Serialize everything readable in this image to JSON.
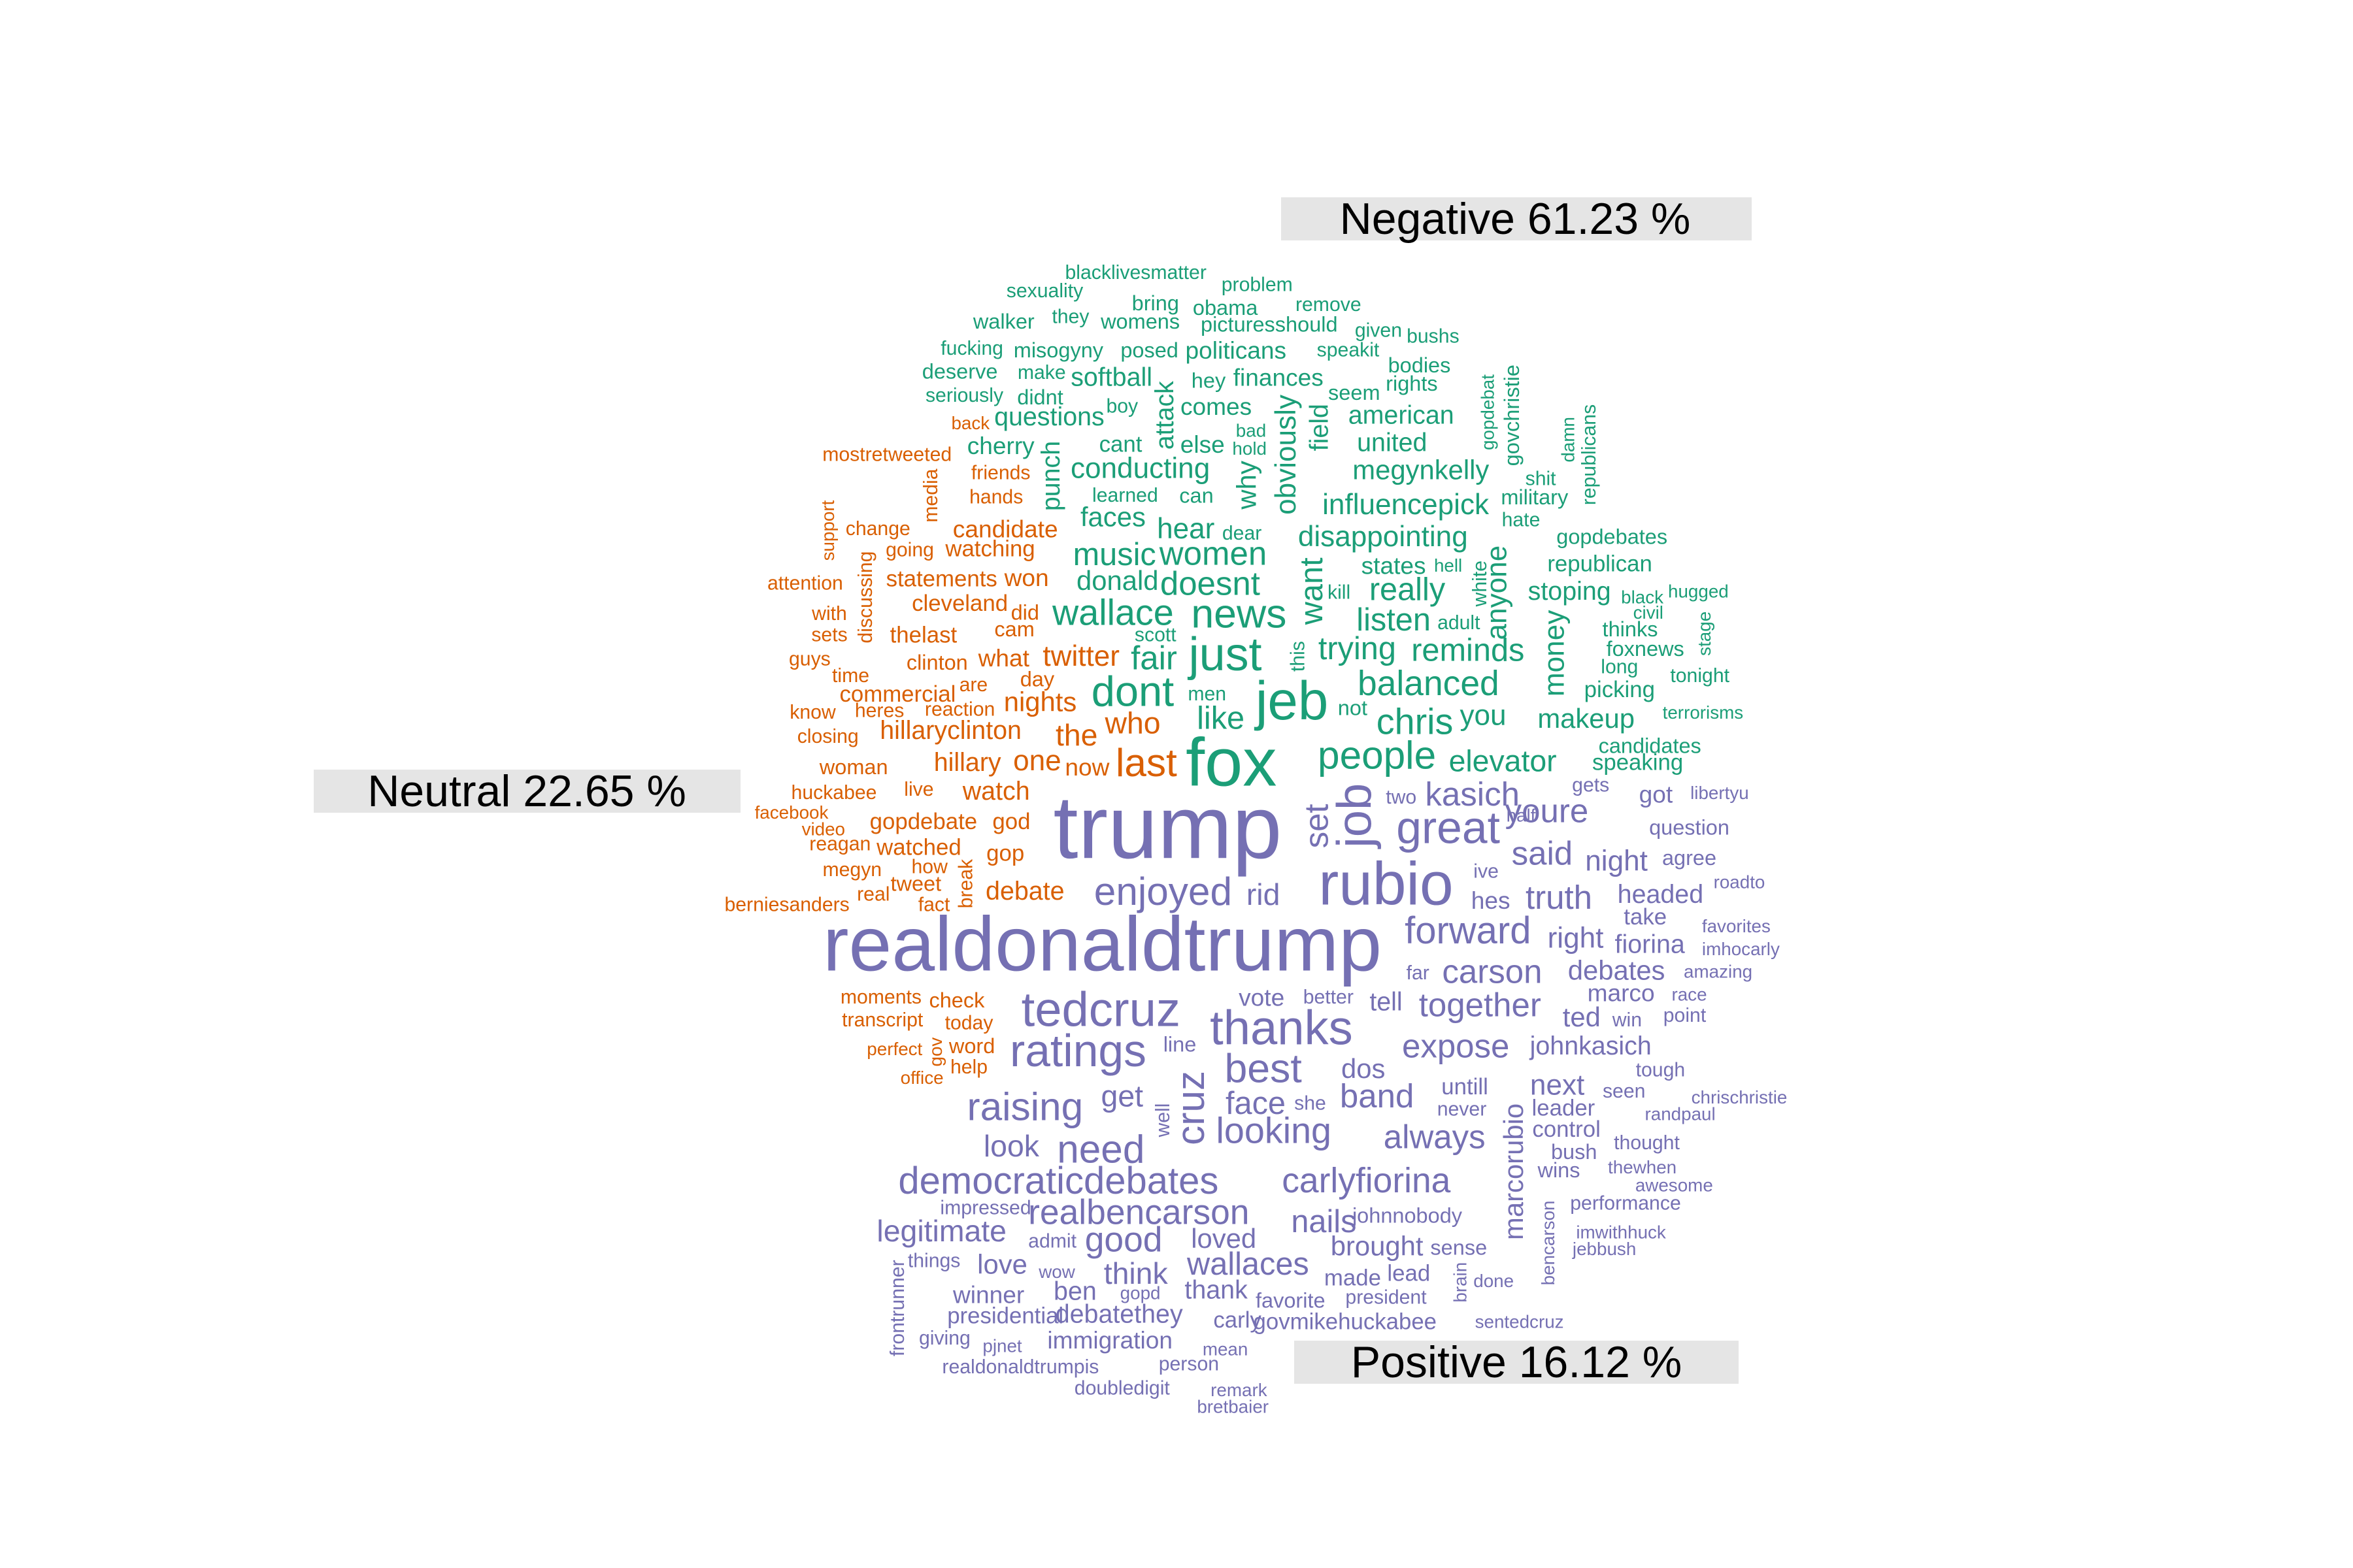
{
  "colors": {
    "negative": "#1b9e77",
    "neutral": "#d95f02",
    "positive": "#7570b3",
    "label_bg": "#e5e5e5"
  },
  "labels": {
    "negative": "Negative 61.23 %",
    "neutral": "Neutral 22.65 %",
    "positive": "Positive 16.12 %"
  },
  "words": {
    "negative": [
      "blacklivesmatter",
      "sexuality",
      "problem",
      "bring",
      "obama",
      "remove",
      "walker",
      "they",
      "womens",
      "picturesshould",
      "given",
      "bushs",
      "fucking",
      "misogyny",
      "posed",
      "politicans",
      "speakit",
      "bodies",
      "deserve",
      "make",
      "softball",
      "hey",
      "finances",
      "rights",
      "seriously",
      "didnt",
      "boy",
      "seem",
      "gopdebat",
      "questions",
      "comes",
      "american",
      "govchristie",
      "republicans",
      "cherry",
      "cant",
      "else",
      "bad",
      "hold",
      "united",
      "damn",
      "attack",
      "field",
      "punch",
      "conducting",
      "obviously",
      "megynkelly",
      "shit",
      "learned",
      "can",
      "why",
      "influencepick",
      "military",
      "faces",
      "hear",
      "dear",
      "hate",
      "music",
      "women",
      "disappointing",
      "gopdebates",
      "donald",
      "doesnt",
      "states",
      "hell",
      "republican",
      "want",
      "really",
      "white",
      "stoping",
      "wallace",
      "news",
      "kill",
      "black",
      "hugged",
      "anyone",
      "listen",
      "adult",
      "civil",
      "scott",
      "just",
      "thinks",
      "fair",
      "stage",
      "trying",
      "reminds",
      "foxnews",
      "this",
      "money",
      "long",
      "dont",
      "tonight",
      "men",
      "balanced",
      "picking",
      "jeb",
      "like",
      "not",
      "chris",
      "you",
      "makeup",
      "terrorisms",
      "fox",
      "candidates",
      "people",
      "elevator",
      "speaking"
    ],
    "neutral": [
      "back",
      "mostretweeted",
      "friends",
      "media",
      "hands",
      "candidate",
      "support",
      "change",
      "going",
      "watching",
      "attention",
      "statements",
      "won",
      "discussing",
      "cleveland",
      "did",
      "with",
      "sets",
      "cam",
      "thelast",
      "guys",
      "clinton",
      "what",
      "twitter",
      "time",
      "day",
      "are",
      "commercial",
      "nights",
      "know",
      "heres",
      "reaction",
      "closing",
      "hillaryclinton",
      "the",
      "who",
      "woman",
      "hillary",
      "one",
      "last",
      "now",
      "huckabee",
      "live",
      "watch",
      "facebook",
      "video",
      "gopdebate",
      "god",
      "reagan",
      "watched",
      "megyn",
      "how",
      "gop",
      "tweet",
      "real",
      "break",
      "fact",
      "debate",
      "berniesanders",
      "moments",
      "check",
      "transcript",
      "today",
      "perfect",
      "gov",
      "word",
      "help",
      "office"
    ],
    "positive": [
      "trump",
      "realdonaldtrump",
      "rubio",
      "great",
      "job",
      "set",
      "kasich",
      "gets",
      "got",
      "libertyu",
      "two",
      "youre",
      "question",
      "half",
      "said",
      "night",
      "agree",
      "enjoyed",
      "rid",
      "ive",
      "truth",
      "headed",
      "roadto",
      "hes",
      "take",
      "forward",
      "right",
      "favorites",
      "fiorina",
      "imhocarly",
      "far",
      "carson",
      "debates",
      "amazing",
      "tedcruz",
      "marco",
      "race",
      "together",
      "vote",
      "better",
      "tell",
      "ted",
      "win",
      "point",
      "thanks",
      "ratings",
      "expose",
      "johnkasich",
      "line",
      "best",
      "dos",
      "tough",
      "raising",
      "untill",
      "next",
      "seen",
      "chrischristie",
      "get",
      "face",
      "band",
      "she",
      "leader",
      "randpaul",
      "never",
      "well",
      "cruz",
      "looking",
      "always",
      "control",
      "marcorubio",
      "thought",
      "look",
      "need",
      "bush",
      "thewhen",
      "wins",
      "democraticdebates",
      "carlyfiorina",
      "awesome",
      "impressed",
      "realbencarson",
      "performance",
      "johnnobody",
      "nails",
      "legitimate",
      "good",
      "loved",
      "imwithhuck",
      "jebbush",
      "brought",
      "sense",
      "bencarson",
      "things",
      "admit",
      "love",
      "wallaces",
      "think",
      "lead",
      "frontrunner",
      "wow",
      "made",
      "brain",
      "done",
      "winner",
      "ben",
      "gopd",
      "thank",
      "favorite",
      "president",
      "presidential",
      "debatethey",
      "carly",
      "govmikehuckabee",
      "sentedcruz",
      "giving",
      "immigration",
      "pjnet",
      "mean",
      "realdonaldtrumpis",
      "person",
      "remark",
      "doubledigit",
      "bretbaier"
    ]
  }
}
